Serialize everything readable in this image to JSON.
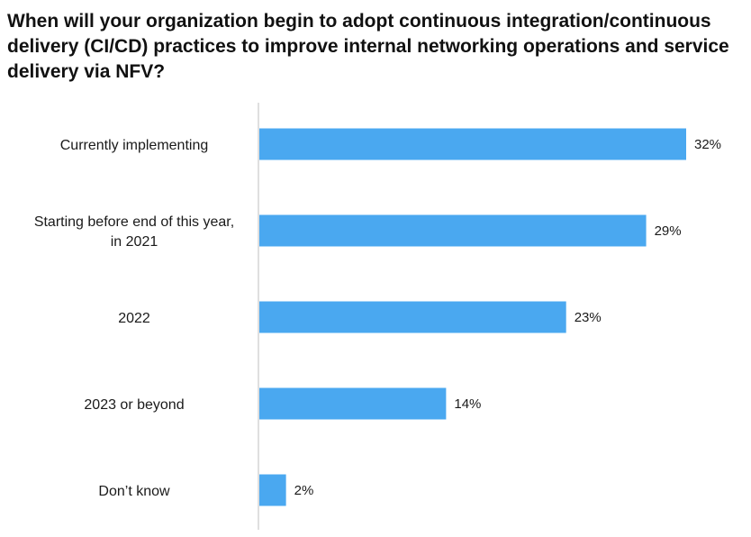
{
  "chart_data": {
    "type": "bar",
    "orientation": "horizontal",
    "title": "When will your organization begin to adopt continuous integration/continuous delivery (CI/CD) practices to improve internal networking operations and service delivery via NFV?",
    "categories": [
      [
        "Currently implementing"
      ],
      [
        "Starting before end of this year,",
        "in 2021"
      ],
      [
        "2022"
      ],
      [
        "2023 or beyond"
      ],
      [
        "Don’t know"
      ]
    ],
    "values": [
      32,
      29,
      23,
      14,
      2
    ],
    "value_labels": [
      "32%",
      "29%",
      "23%",
      "14%",
      "2%"
    ],
    "unit": "%",
    "xlim": [
      0,
      32
    ],
    "grid": false,
    "legend": "none",
    "colors": {
      "bar": "#4AA8F0",
      "axis": "#bfbfbf"
    }
  }
}
